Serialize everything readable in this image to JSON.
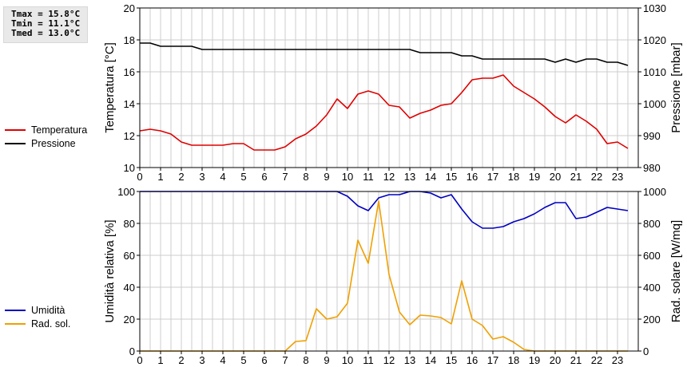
{
  "stats": {
    "tmax": "Tmax = 15.8°C",
    "tmin": "Tmin = 11.1°C",
    "tmed": "Tmed = 13.0°C"
  },
  "colors": {
    "temperatura": "#e00000",
    "pressione": "#000000",
    "umidita": "#0000c0",
    "radiazione": "#f0a000",
    "grid": "#cccccc"
  },
  "chart_data": [
    {
      "type": "line",
      "x_ticks": [
        "0",
        "1",
        "2",
        "3",
        "4",
        "5",
        "6",
        "7",
        "8",
        "9",
        "10",
        "11",
        "12",
        "13",
        "14",
        "15",
        "16",
        "17",
        "18",
        "19",
        "20",
        "21",
        "22",
        "23"
      ],
      "xlim": [
        0,
        24
      ],
      "ylabel": "Temperatura [°C]",
      "ylim": [
        10,
        20
      ],
      "y_ticks": [
        10,
        12,
        14,
        16,
        18,
        20
      ],
      "ylabel_right": "Pressione [mbar]",
      "ylim_right": [
        980,
        1030
      ],
      "y_ticks_right": [
        980,
        990,
        1000,
        1010,
        1020,
        1030
      ],
      "grid": true,
      "series": [
        {
          "name": "Temperatura",
          "axis": "left",
          "color": "#e00000",
          "x": [
            0,
            0.5,
            1,
            1.5,
            2,
            2.5,
            3,
            3.5,
            4,
            4.5,
            5,
            5.5,
            6,
            6.5,
            7,
            7.5,
            8,
            8.5,
            9,
            9.5,
            10,
            10.5,
            11,
            11.5,
            12,
            12.5,
            13,
            13.5,
            14,
            14.5,
            15,
            15.5,
            16,
            16.5,
            17,
            17.5,
            18,
            18.5,
            19,
            19.5,
            20,
            20.5,
            21,
            21.5,
            22,
            22.5,
            23,
            23.5
          ],
          "values": [
            12.3,
            12.4,
            12.3,
            12.1,
            11.6,
            11.4,
            11.4,
            11.4,
            11.4,
            11.5,
            11.5,
            11.1,
            11.1,
            11.1,
            11.3,
            11.8,
            12.1,
            12.6,
            13.3,
            14.3,
            13.7,
            14.6,
            14.8,
            14.6,
            13.9,
            13.8,
            13.1,
            13.4,
            13.6,
            13.9,
            14.0,
            14.7,
            15.5,
            15.6,
            15.6,
            15.8,
            15.1,
            14.7,
            14.3,
            13.8,
            13.2,
            12.8,
            13.3,
            12.9,
            12.4,
            11.5,
            11.6,
            11.2
          ]
        },
        {
          "name": "Pressione",
          "axis": "right",
          "color": "#000000",
          "x": [
            0,
            0.5,
            1,
            1.5,
            2,
            2.5,
            3,
            3.5,
            4,
            4.5,
            5,
            5.5,
            6,
            6.5,
            7,
            7.5,
            8,
            8.5,
            9,
            9.5,
            10,
            10.5,
            11,
            11.5,
            12,
            12.5,
            13,
            13.5,
            14,
            14.5,
            15,
            15.5,
            16,
            16.5,
            17,
            17.5,
            18,
            18.5,
            19,
            19.5,
            20,
            20.5,
            21,
            21.5,
            22,
            22.5,
            23,
            23.5
          ],
          "values": [
            1019,
            1019,
            1018,
            1018,
            1018,
            1018,
            1017,
            1017,
            1017,
            1017,
            1017,
            1017,
            1017,
            1017,
            1017,
            1017,
            1017,
            1017,
            1017,
            1017,
            1017,
            1017,
            1017,
            1017,
            1017,
            1017,
            1017,
            1016,
            1016,
            1016,
            1016,
            1015,
            1015,
            1014,
            1014,
            1014,
            1014,
            1014,
            1014,
            1014,
            1013,
            1014,
            1013,
            1014,
            1014,
            1013,
            1013,
            1012
          ]
        }
      ]
    },
    {
      "type": "line",
      "x_ticks": [
        "0",
        "1",
        "2",
        "3",
        "4",
        "5",
        "6",
        "7",
        "8",
        "9",
        "10",
        "11",
        "12",
        "13",
        "14",
        "15",
        "16",
        "17",
        "18",
        "19",
        "20",
        "21",
        "22",
        "23"
      ],
      "xlim": [
        0,
        24
      ],
      "ylabel": "Umidità relativa [%]",
      "ylim": [
        0,
        100
      ],
      "y_ticks": [
        0,
        20,
        40,
        60,
        80,
        100
      ],
      "ylabel_right": "Rad. solare [W/mq]",
      "ylim_right": [
        0,
        1000
      ],
      "y_ticks_right": [
        0,
        200,
        400,
        600,
        800,
        1000
      ],
      "grid": true,
      "series": [
        {
          "name": "Umidità",
          "axis": "left",
          "color": "#0000c0",
          "x": [
            0,
            0.5,
            1,
            1.5,
            2,
            2.5,
            3,
            3.5,
            4,
            4.5,
            5,
            5.5,
            6,
            6.5,
            7,
            7.5,
            8,
            8.5,
            9,
            9.5,
            10,
            10.5,
            11,
            11.5,
            12,
            12.5,
            13,
            13.5,
            14,
            14.5,
            15,
            15.5,
            16,
            16.5,
            17,
            17.5,
            18,
            18.5,
            19,
            19.5,
            20,
            20.5,
            21,
            21.5,
            22,
            22.5,
            23,
            23.5
          ],
          "values": [
            100,
            100,
            100,
            100,
            100,
            100,
            100,
            100,
            100,
            100,
            100,
            100,
            100,
            100,
            100,
            100,
            100,
            100,
            100,
            100,
            97,
            91,
            88,
            96,
            98,
            98,
            100,
            100,
            99,
            96,
            98,
            89,
            81,
            77,
            77,
            78,
            81,
            83,
            86,
            90,
            93,
            93,
            83,
            84,
            87,
            90,
            89,
            88
          ]
        },
        {
          "name": "Rad. sol.",
          "axis": "right",
          "color": "#f0a000",
          "x": [
            0,
            0.5,
            1,
            1.5,
            2,
            2.5,
            3,
            3.5,
            4,
            4.5,
            5,
            5.5,
            6,
            6.5,
            7,
            7.5,
            8,
            8.5,
            9,
            9.5,
            10,
            10.5,
            11,
            11.5,
            12,
            12.5,
            13,
            13.5,
            14,
            14.5,
            15,
            15.5,
            16,
            16.5,
            17,
            17.5,
            18,
            18.5,
            19,
            19.5,
            20,
            20.5,
            21,
            21.5,
            22,
            22.5,
            23,
            23.5
          ],
          "values": [
            0,
            0,
            0,
            0,
            0,
            0,
            0,
            0,
            0,
            0,
            0,
            0,
            0,
            0,
            0,
            60,
            65,
            265,
            200,
            215,
            300,
            695,
            550,
            940,
            480,
            245,
            165,
            225,
            220,
            210,
            170,
            440,
            200,
            160,
            75,
            90,
            55,
            10,
            0,
            0,
            0,
            0,
            0,
            0,
            0,
            0,
            0,
            0
          ]
        }
      ]
    }
  ]
}
